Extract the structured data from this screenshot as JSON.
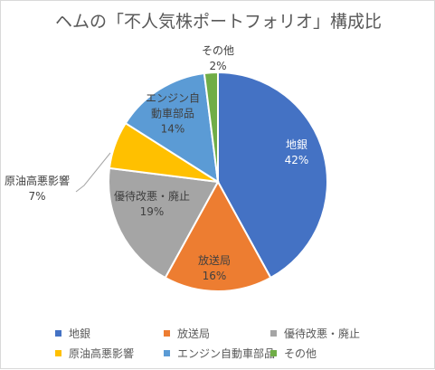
{
  "chart_data": {
    "type": "pie",
    "title": "ヘムの「不人気株ポートフォリオ」構成比",
    "slices": [
      {
        "label": "地銀",
        "label_lines": [
          "地銀"
        ],
        "value": 42,
        "pct_text": "42%",
        "color": "#4472c4",
        "label_color": "#ffffff"
      },
      {
        "label": "放送局",
        "label_lines": [
          "放送局"
        ],
        "value": 16,
        "pct_text": "16%",
        "color": "#ed7d31",
        "label_color": "#404040"
      },
      {
        "label": "優待改悪・廃止",
        "label_lines": [
          "優待改悪・廃止"
        ],
        "value": 19,
        "pct_text": "19%",
        "color": "#a5a5a5",
        "label_color": "#404040"
      },
      {
        "label": "原油高悪影響",
        "label_lines": [
          "原油高悪影響"
        ],
        "value": 7,
        "pct_text": "7%",
        "color": "#ffc000",
        "label_color": "#404040"
      },
      {
        "label": "エンジン自動車部品",
        "label_lines": [
          "エンジン自",
          "動車部品"
        ],
        "value": 14,
        "pct_text": "14%",
        "color": "#5b9bd5",
        "label_color": "#404040"
      },
      {
        "label": "その他",
        "label_lines": [
          "その他"
        ],
        "value": 2,
        "pct_text": "2%",
        "color": "#70ad47",
        "label_color": "#404040"
      }
    ],
    "legend_position": "bottom"
  }
}
